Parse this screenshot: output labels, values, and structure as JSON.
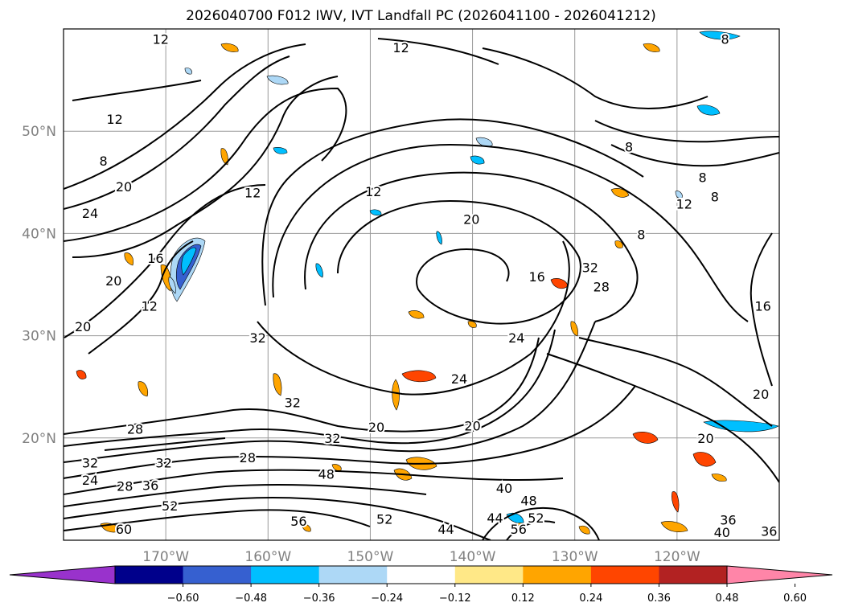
{
  "title": "2026040700 F012 IWV, IVT Landfall PC (2026041100 - 2026041212)",
  "map": {
    "lon_range": [
      -180,
      -110
    ],
    "lat_range": [
      10,
      60
    ],
    "lon_ticks": [
      {
        "lon": -170,
        "label": "170°W"
      },
      {
        "lon": -160,
        "label": "160°W"
      },
      {
        "lon": -150,
        "label": "150°W"
      },
      {
        "lon": -140,
        "label": "140°W"
      },
      {
        "lon": -130,
        "label": "130°W"
      },
      {
        "lon": -120,
        "label": "120°W"
      }
    ],
    "lat_ticks": [
      {
        "lat": 20,
        "label": "20°N"
      },
      {
        "lat": 30,
        "label": "30°N"
      },
      {
        "lat": 40,
        "label": "40°N"
      },
      {
        "lat": 50,
        "label": "50°N"
      }
    ],
    "contour_labels": [
      {
        "text": "12",
        "lon": -170.5,
        "lat": 59.0
      },
      {
        "text": "12",
        "lon": -175.0,
        "lat": 51.2
      },
      {
        "text": "8",
        "lon": -176.1,
        "lat": 47.1
      },
      {
        "text": "20",
        "lon": -174.1,
        "lat": 44.6
      },
      {
        "text": "24",
        "lon": -177.4,
        "lat": 42.0
      },
      {
        "text": "16",
        "lon": -171.0,
        "lat": 37.6
      },
      {
        "text": "20",
        "lon": -175.1,
        "lat": 35.4
      },
      {
        "text": "12",
        "lon": -171.6,
        "lat": 32.9
      },
      {
        "text": "20",
        "lon": -178.1,
        "lat": 30.9
      },
      {
        "text": "12",
        "lon": -161.5,
        "lat": 44.0
      },
      {
        "text": "32",
        "lon": -161.0,
        "lat": 29.8
      },
      {
        "text": "32",
        "lon": -157.6,
        "lat": 23.5
      },
      {
        "text": "32",
        "lon": -153.7,
        "lat": 20.0
      },
      {
        "text": "28",
        "lon": -173.0,
        "lat": 20.9
      },
      {
        "text": "28",
        "lon": -162.0,
        "lat": 18.1
      },
      {
        "text": "32",
        "lon": -177.4,
        "lat": 17.6
      },
      {
        "text": "32",
        "lon": -170.2,
        "lat": 17.6
      },
      {
        "text": "24",
        "lon": -177.4,
        "lat": 15.9
      },
      {
        "text": "28",
        "lon": -174.0,
        "lat": 15.3
      },
      {
        "text": "36",
        "lon": -171.5,
        "lat": 15.4
      },
      {
        "text": "52",
        "lon": -169.6,
        "lat": 13.4
      },
      {
        "text": "60",
        "lon": -174.1,
        "lat": 11.1
      },
      {
        "text": "56",
        "lon": -157.0,
        "lat": 11.9
      },
      {
        "text": "52",
        "lon": -148.6,
        "lat": 12.1
      },
      {
        "text": "48",
        "lon": -154.3,
        "lat": 16.5
      },
      {
        "text": "44",
        "lon": -142.6,
        "lat": 11.1
      },
      {
        "text": "44",
        "lon": -137.8,
        "lat": 12.2
      },
      {
        "text": "56",
        "lon": -135.5,
        "lat": 11.1
      },
      {
        "text": "52",
        "lon": -133.8,
        "lat": 12.2
      },
      {
        "text": "48",
        "lon": -134.5,
        "lat": 13.9
      },
      {
        "text": "40",
        "lon": -136.9,
        "lat": 15.1
      },
      {
        "text": "20",
        "lon": -149.4,
        "lat": 21.1
      },
      {
        "text": "20",
        "lon": -140.0,
        "lat": 21.2
      },
      {
        "text": "24",
        "lon": -141.3,
        "lat": 25.8
      },
      {
        "text": "24",
        "lon": -135.7,
        "lat": 29.8
      },
      {
        "text": "16",
        "lon": -133.7,
        "lat": 35.8
      },
      {
        "text": "32",
        "lon": -128.5,
        "lat": 36.7
      },
      {
        "text": "28",
        "lon": -127.4,
        "lat": 34.8
      },
      {
        "text": "20",
        "lon": -140.1,
        "lat": 41.4
      },
      {
        "text": "12",
        "lon": -149.7,
        "lat": 44.1
      },
      {
        "text": "12",
        "lon": -147.0,
        "lat": 58.2
      },
      {
        "text": "8",
        "lon": -124.7,
        "lat": 48.5
      },
      {
        "text": "8",
        "lon": -117.5,
        "lat": 45.5
      },
      {
        "text": "8",
        "lon": -116.3,
        "lat": 43.6
      },
      {
        "text": "12",
        "lon": -119.3,
        "lat": 42.9
      },
      {
        "text": "8",
        "lon": -123.5,
        "lat": 39.9
      },
      {
        "text": "16",
        "lon": -111.6,
        "lat": 32.9
      },
      {
        "text": "20",
        "lon": -111.8,
        "lat": 24.3
      },
      {
        "text": "20",
        "lon": -117.2,
        "lat": 20.0
      },
      {
        "text": "36",
        "lon": -115.0,
        "lat": 12.0
      },
      {
        "text": "40",
        "lon": -115.6,
        "lat": 10.8
      },
      {
        "text": "36",
        "lon": -111.0,
        "lat": 10.9
      },
      {
        "text": "8",
        "lon": -115.3,
        "lat": 59.0
      }
    ]
  },
  "colorbar": {
    "colors": [
      "#9932cc",
      "#00008b",
      "#3660d0",
      "#00bfff",
      "#add8f6",
      "#ffffff",
      "#ffe887",
      "#ffa500",
      "#ff4500",
      "#b22222",
      "#ff85a8"
    ],
    "ticks": [
      "−0.60",
      "−0.48",
      "−0.36",
      "−0.24",
      "−0.12",
      "0.12",
      "0.24",
      "0.36",
      "0.48",
      "0.60"
    ]
  }
}
